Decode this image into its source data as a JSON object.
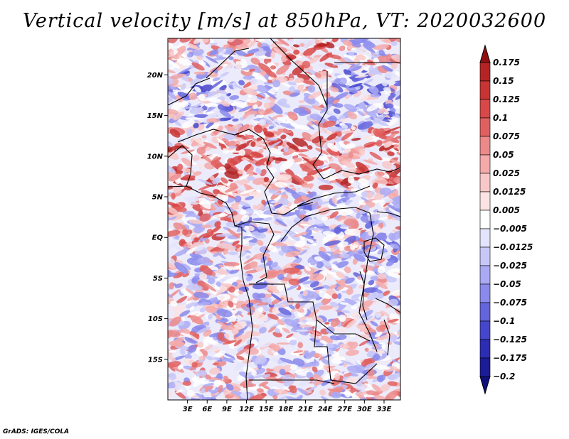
{
  "map": {
    "title": "Vertical velocity [m/s] at 850hPa, VT: 2020032600",
    "credit": "GrADS: IGES/COLA",
    "variable": "Vertical velocity",
    "units": "m/s",
    "level": "850hPa",
    "valid_time": "2020032600",
    "lon_range": [
      0,
      35.5
    ],
    "lat_range": [
      -20,
      24.5
    ],
    "lat_ticks": [
      {
        "value": 20,
        "label": "20N"
      },
      {
        "value": 15,
        "label": "15N"
      },
      {
        "value": 10,
        "label": "10N"
      },
      {
        "value": 5,
        "label": "5N"
      },
      {
        "value": 0,
        "label": "EQ"
      },
      {
        "value": -5,
        "label": "5S"
      },
      {
        "value": -10,
        "label": "10S"
      },
      {
        "value": -15,
        "label": "15S"
      }
    ],
    "lon_ticks": [
      {
        "value": 3,
        "label": "3E"
      },
      {
        "value": 6,
        "label": "6E"
      },
      {
        "value": 9,
        "label": "9E"
      },
      {
        "value": 12,
        "label": "12E"
      },
      {
        "value": 15,
        "label": "15E"
      },
      {
        "value": 18,
        "label": "18E"
      },
      {
        "value": 21,
        "label": "21E"
      },
      {
        "value": 24,
        "label": "24E"
      },
      {
        "value": 27,
        "label": "27E"
      },
      {
        "value": 30,
        "label": "30E"
      },
      {
        "value": 33,
        "label": "33E"
      }
    ]
  },
  "colorbar": {
    "levels": [
      {
        "label": "0.175",
        "color": "#a01818"
      },
      {
        "label": "0.15",
        "color": "#b42424"
      },
      {
        "label": "0.125",
        "color": "#c83434"
      },
      {
        "label": "0.1",
        "color": "#d84848"
      },
      {
        "label": "0.075",
        "color": "#e06060"
      },
      {
        "label": "0.05",
        "color": "#ec8a8a"
      },
      {
        "label": "0.025",
        "color": "#f4aaaa"
      },
      {
        "label": "0.0125",
        "color": "#f8c8c8"
      },
      {
        "label": "0.005",
        "color": "#fce4e4"
      },
      {
        "label": "−0.005",
        "color": "#ffffff"
      },
      {
        "label": "−0.0125",
        "color": "#e4e4fc"
      },
      {
        "label": "−0.025",
        "color": "#c8c8f8"
      },
      {
        "label": "−0.05",
        "color": "#aaaaf4"
      },
      {
        "label": "−0.075",
        "color": "#8a8aec"
      },
      {
        "label": "−0.1",
        "color": "#6464dc"
      },
      {
        "label": "−0.125",
        "color": "#4646cc"
      },
      {
        "label": "−0.175",
        "color": "#2c2cb4"
      },
      {
        "label": "−0.2",
        "color": "#1c1c96"
      }
    ],
    "top_color": "#901010",
    "bottom_color": "#10107c"
  }
}
